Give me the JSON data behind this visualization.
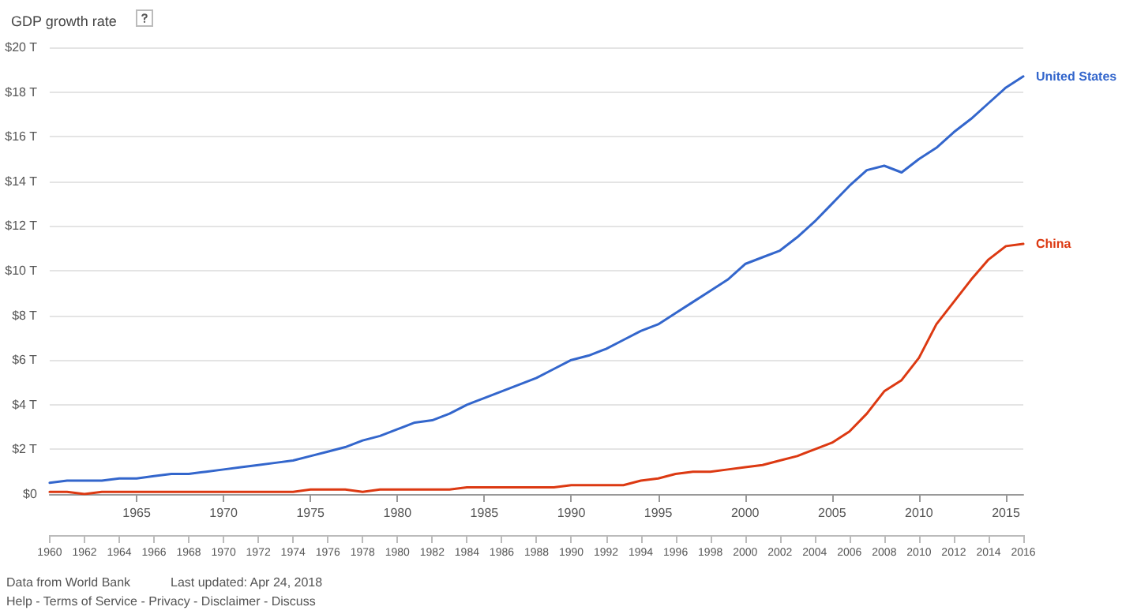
{
  "chart_data": {
    "type": "line",
    "title": "GDP growth rate",
    "x": [
      1960,
      1961,
      1962,
      1963,
      1964,
      1965,
      1966,
      1967,
      1968,
      1969,
      1970,
      1971,
      1972,
      1973,
      1974,
      1975,
      1976,
      1977,
      1978,
      1979,
      1980,
      1981,
      1982,
      1983,
      1984,
      1985,
      1986,
      1987,
      1988,
      1989,
      1990,
      1991,
      1992,
      1993,
      1994,
      1995,
      1996,
      1997,
      1998,
      1999,
      2000,
      2001,
      2002,
      2003,
      2004,
      2005,
      2006,
      2007,
      2008,
      2009,
      2010,
      2011,
      2012,
      2013,
      2014,
      2015,
      2016
    ],
    "series": [
      {
        "name": "United States",
        "color": "#3366cc",
        "values": [
          0.5,
          0.6,
          0.6,
          0.6,
          0.7,
          0.7,
          0.8,
          0.9,
          0.9,
          1.0,
          1.1,
          1.2,
          1.3,
          1.4,
          1.5,
          1.7,
          1.9,
          2.1,
          2.4,
          2.6,
          2.9,
          3.2,
          3.3,
          3.6,
          4.0,
          4.3,
          4.6,
          4.9,
          5.2,
          5.6,
          6.0,
          6.2,
          6.5,
          6.9,
          7.3,
          7.6,
          8.1,
          8.6,
          9.1,
          9.6,
          10.3,
          10.6,
          10.9,
          11.5,
          12.2,
          13.0,
          13.8,
          14.5,
          14.7,
          14.4,
          15.0,
          15.5,
          16.2,
          16.8,
          17.5,
          18.2,
          18.7
        ]
      },
      {
        "name": "China",
        "color": "#dc3912",
        "values": [
          0.1,
          0.1,
          0.0,
          0.1,
          0.1,
          0.1,
          0.1,
          0.1,
          0.1,
          0.1,
          0.1,
          0.1,
          0.1,
          0.1,
          0.1,
          0.2,
          0.2,
          0.2,
          0.1,
          0.2,
          0.2,
          0.2,
          0.2,
          0.2,
          0.3,
          0.3,
          0.3,
          0.3,
          0.3,
          0.3,
          0.4,
          0.4,
          0.4,
          0.4,
          0.6,
          0.7,
          0.9,
          1.0,
          1.0,
          1.1,
          1.2,
          1.3,
          1.5,
          1.7,
          2.0,
          2.3,
          2.8,
          3.6,
          4.6,
          5.1,
          6.1,
          7.6,
          8.6,
          9.6,
          10.5,
          11.1,
          11.2
        ]
      }
    ],
    "xlim": [
      1960,
      2016
    ],
    "xticks": [
      1965,
      1970,
      1975,
      1980,
      1985,
      1990,
      1995,
      2000,
      2005,
      2010,
      2015
    ],
    "x2lim": [
      1960,
      2016
    ],
    "x2ticks": [
      1960,
      1962,
      1964,
      1966,
      1968,
      1970,
      1972,
      1974,
      1976,
      1978,
      1980,
      1982,
      1984,
      1986,
      1988,
      1990,
      1992,
      1994,
      1996,
      1998,
      2000,
      2002,
      2004,
      2006,
      2008,
      2010,
      2012,
      2014,
      2016
    ],
    "ylim": [
      0,
      20
    ],
    "yticks": [
      {
        "value": 0,
        "label": "$0"
      },
      {
        "value": 2,
        "label": "$2 T"
      },
      {
        "value": 4,
        "label": "$4 T"
      },
      {
        "value": 6,
        "label": "$6 T"
      },
      {
        "value": 8,
        "label": "$8 T"
      },
      {
        "value": 10,
        "label": "$10 T"
      },
      {
        "value": 12,
        "label": "$12 T"
      },
      {
        "value": 14,
        "label": "$14 T"
      },
      {
        "value": 16,
        "label": "$16 T"
      },
      {
        "value": 18,
        "label": "$18 T"
      },
      {
        "value": 20,
        "label": "$20 T"
      }
    ],
    "grid": "y",
    "legend": false,
    "marker": "none",
    "line_style": "solid",
    "annotations": [
      "Data from World Bank",
      "Last updated: Apr 24, 2018",
      "Help - Terms of Service - Privacy - Disclaimer - Discuss"
    ]
  }
}
